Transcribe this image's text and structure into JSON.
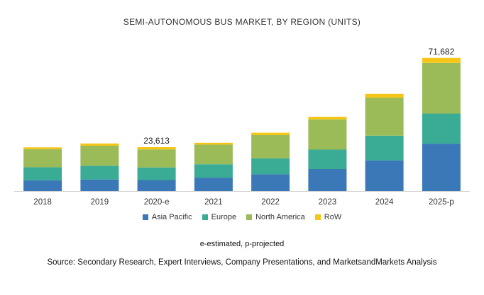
{
  "chart_data": {
    "type": "bar",
    "stacked": true,
    "title": "SEMI-AUTONOMOUS BUS MARKET, BY REGION (UNITS)",
    "xlabel": "",
    "ylabel": "",
    "categories": [
      "2018",
      "2019",
      "2020-e",
      "2021",
      "2022",
      "2023",
      "2024",
      "2025-p"
    ],
    "series": [
      {
        "name": "Asia Pacific",
        "color": "#3a78b8",
        "values": [
          5800,
          6200,
          5900,
          7200,
          9000,
          11800,
          16500,
          25500
        ]
      },
      {
        "name": "Europe",
        "color": "#3aab94",
        "values": [
          7000,
          7400,
          6800,
          7200,
          8600,
          10500,
          13300,
          16200
        ]
      },
      {
        "name": "North America",
        "color": "#9bbb59",
        "values": [
          9700,
          10800,
          9713,
          10600,
          12500,
          16300,
          20500,
          27300
        ]
      },
      {
        "name": "RoW",
        "color": "#f5c518",
        "values": [
          1000,
          1200,
          1200,
          1000,
          1300,
          1400,
          2000,
          2682
        ]
      }
    ],
    "data_labels": [
      {
        "category": "2020-e",
        "text": "23,613"
      },
      {
        "category": "2025-p",
        "text": "71,682"
      }
    ],
    "ylim": [
      0,
      80000
    ],
    "grid": false,
    "legend_position": "bottom"
  },
  "note": "e-estimated, p-projected",
  "source": "Source: Secondary Research, Expert Interviews, Company Presentations, and MarketsandMarkets Analysis"
}
